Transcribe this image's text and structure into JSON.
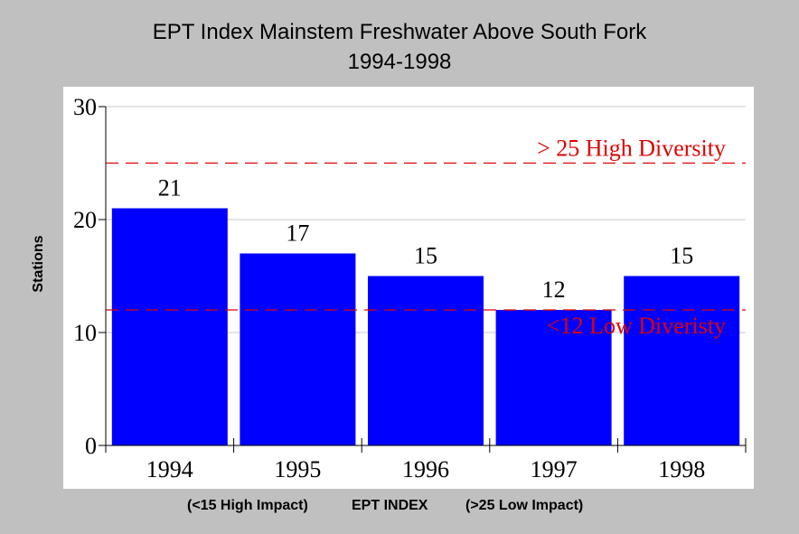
{
  "chart_data": {
    "type": "bar",
    "title_line1": "EPT Index Mainstem Freshwater Above South Fork",
    "title_line2": "1994-1998",
    "ylabel": "Stations",
    "xlabel_left": "(<15 High Impact)",
    "xlabel_center": "EPT INDEX",
    "xlabel_right": "(>25 Low Impact)",
    "categories": [
      "1994",
      "1995",
      "1996",
      "1997",
      "1998"
    ],
    "values": [
      21,
      17,
      15,
      12,
      15
    ],
    "data_labels": [
      "21",
      "17",
      "15",
      "12",
      "15"
    ],
    "ylim": [
      0,
      30
    ],
    "yticks": [
      "0",
      "10",
      "20",
      "30"
    ],
    "grid": true,
    "reference_lines": [
      {
        "value": 25,
        "label": "> 25 High Diversity"
      },
      {
        "value": 12,
        "label": "<12 Low Diveristy"
      }
    ],
    "colors": {
      "bar": "#0000ff",
      "reference": "#e00000",
      "grid": "#c8c8c8",
      "background": "#c0c0c0",
      "panel": "#ffffff"
    }
  }
}
